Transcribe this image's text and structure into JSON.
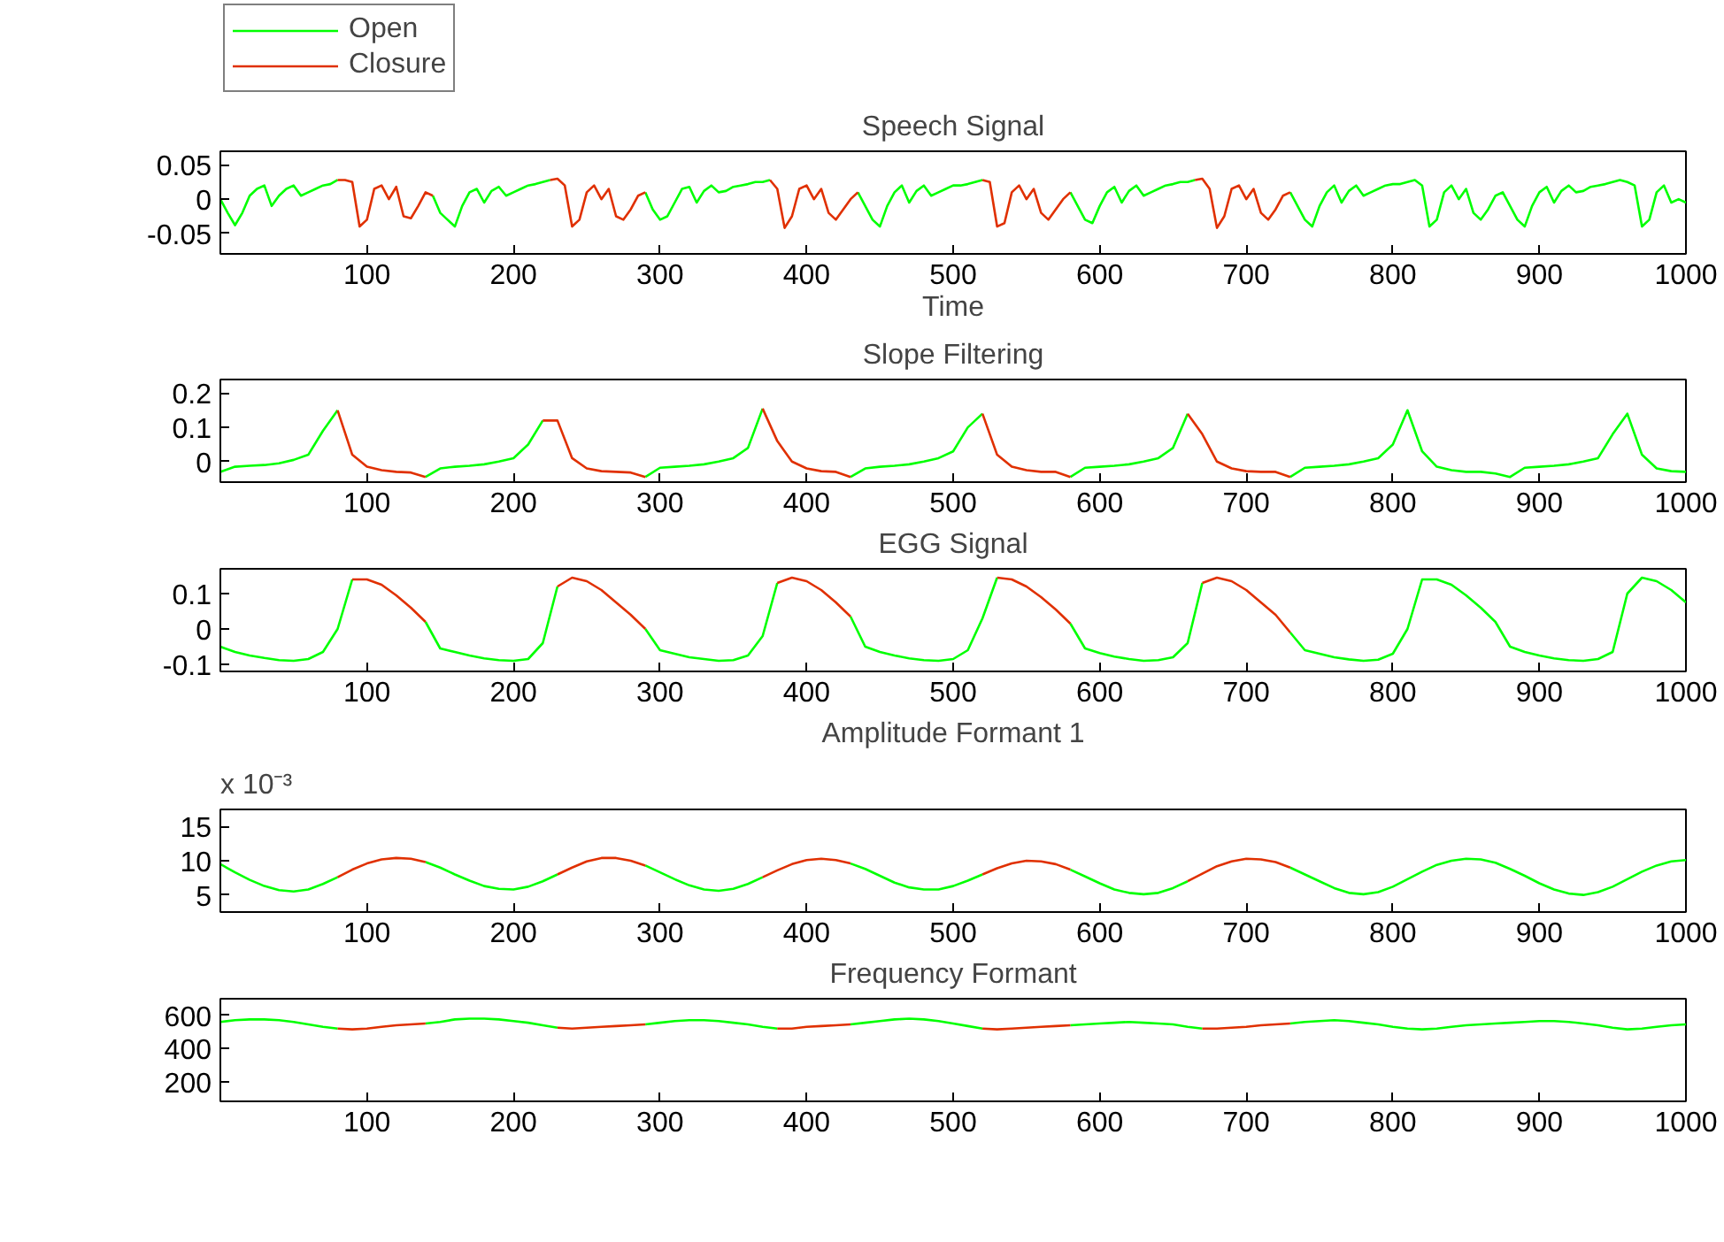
{
  "chart_data": [
    {
      "type": "line",
      "title": "Speech Signal",
      "xlabel": "Time",
      "legend": "top left",
      "grid": false,
      "xlim": [
        0,
        1000
      ],
      "xticks": [
        100,
        200,
        300,
        400,
        500,
        600,
        700,
        800,
        900,
        1000
      ],
      "ylim": [
        -0.08,
        0.07
      ],
      "yticks": [
        -0.05,
        0,
        0.05
      ],
      "x": [
        0,
        5,
        10,
        15,
        20,
        25,
        30,
        35,
        40,
        45,
        50,
        55,
        60,
        65,
        70,
        75,
        80,
        85,
        90,
        95,
        100,
        105,
        110,
        115,
        120,
        125,
        130,
        135,
        140,
        145,
        150,
        155,
        160,
        165,
        170,
        175,
        180,
        185,
        190,
        195,
        200,
        205,
        210,
        215,
        220,
        225,
        230,
        235,
        240,
        245,
        250,
        255,
        260,
        265,
        270,
        275,
        280,
        285,
        290,
        295,
        300,
        305,
        310,
        315,
        320,
        325,
        330,
        335,
        340,
        345,
        350,
        355,
        360,
        365,
        370,
        375,
        380,
        385,
        390,
        395,
        400,
        405,
        410,
        415,
        420,
        425,
        430,
        435,
        440,
        445,
        450,
        455,
        460,
        465,
        470,
        475,
        480,
        485,
        490,
        495,
        500,
        505,
        510,
        515,
        520,
        525,
        530,
        535,
        540,
        545,
        550,
        555,
        560,
        565,
        570,
        575,
        580,
        585,
        590,
        595,
        600,
        605,
        610,
        615,
        620,
        625,
        630,
        635,
        640,
        645,
        650,
        655,
        660,
        665,
        670,
        675,
        680,
        685,
        690,
        695,
        700,
        705,
        710,
        715,
        720,
        725,
        730,
        735,
        740,
        745,
        750,
        755,
        760,
        765,
        770,
        775,
        780,
        785,
        790,
        795,
        800,
        805,
        810,
        815,
        820,
        825,
        830,
        835,
        840,
        845,
        850,
        855,
        860,
        865,
        870,
        875,
        880,
        885,
        890,
        895,
        900,
        905,
        910,
        915,
        920,
        925,
        930,
        935,
        940,
        945,
        950,
        955,
        960,
        965,
        970,
        975,
        980,
        985,
        990,
        995,
        1000
      ],
      "series": [
        {
          "name": "Open",
          "color": "#00ff00",
          "values": [
            0.0,
            -0.02,
            -0.038,
            -0.02,
            0.005,
            0.015,
            0.02,
            -0.01,
            0.005,
            0.015,
            0.02,
            0.005,
            0.01,
            0.015,
            0.02,
            0.022,
            0.028,
            null,
            null,
            null,
            null,
            null,
            null,
            null,
            null,
            null,
            null,
            null,
            null,
            0.005,
            -0.02,
            -0.03,
            -0.04,
            -0.01,
            0.01,
            0.015,
            -0.005,
            0.012,
            0.018,
            0.005,
            0.01,
            0.015,
            0.02,
            0.022,
            0.025,
            0.028,
            null,
            null,
            null,
            null,
            null,
            null,
            null,
            null,
            null,
            null,
            null,
            null,
            0.01,
            -0.015,
            -0.03,
            -0.025,
            -0.005,
            0.015,
            0.018,
            -0.005,
            0.012,
            0.02,
            0.01,
            0.012,
            0.018,
            0.02,
            0.022,
            0.025,
            0.025,
            0.028,
            null,
            null,
            null,
            null,
            null,
            null,
            null,
            null,
            null,
            null,
            null,
            0.01,
            -0.01,
            -0.03,
            -0.04,
            -0.01,
            0.01,
            0.02,
            -0.005,
            0.012,
            0.02,
            0.005,
            0.01,
            0.015,
            0.02,
            0.02,
            0.022,
            0.025,
            0.028,
            null,
            null,
            null,
            null,
            null,
            null,
            null,
            null,
            null,
            null,
            null,
            0.01,
            -0.01,
            -0.03,
            -0.035,
            -0.01,
            0.01,
            0.018,
            -0.005,
            0.012,
            0.02,
            0.005,
            0.01,
            0.015,
            0.02,
            0.022,
            0.025,
            0.025,
            0.028,
            null,
            null,
            null,
            null,
            null,
            null,
            null,
            null,
            null,
            null,
            null,
            null,
            0.01,
            -0.01,
            -0.03,
            -0.04,
            -0.01,
            0.01,
            0.02,
            -0.005,
            0.012,
            0.02,
            0.005,
            0.01,
            0.015,
            0.02,
            0.022,
            0.022,
            0.025,
            0.028,
            0.02,
            -0.04,
            -0.03,
            0.01,
            0.02,
            0.0,
            0.015,
            -0.02,
            -0.03,
            -0.015,
            0.005,
            0.01,
            -0.01,
            -0.03,
            -0.04,
            -0.01,
            0.01,
            0.018,
            -0.005,
            0.012,
            0.02,
            0.01,
            0.012,
            0.018,
            0.02,
            0.022,
            0.025,
            0.028,
            0.025,
            0.02,
            -0.04,
            -0.03,
            0.01,
            0.02,
            -0.005,
            0.0,
            -0.005
          ]
        },
        {
          "name": "Closure",
          "color": "#e03000",
          "x": [
            80,
            85,
            90,
            95,
            100,
            105,
            110,
            115,
            120,
            125,
            130,
            135,
            140,
            145,
            185,
            225,
            230,
            235,
            240,
            245,
            250,
            255,
            260,
            265,
            270,
            275,
            280,
            285,
            290,
            330,
            375,
            380,
            385,
            390,
            395,
            400,
            405,
            410,
            415,
            420,
            425,
            430,
            435,
            480,
            520,
            525,
            530,
            535,
            540,
            545,
            550,
            555,
            560,
            565,
            570,
            575,
            580,
            620,
            665,
            670,
            675,
            680,
            685,
            690,
            695,
            700,
            705,
            710,
            715,
            720,
            725,
            730
          ],
          "values": [
            0.028,
            0.028,
            0.025,
            -0.04,
            -0.03,
            0.015,
            0.02,
            0.0,
            0.018,
            -0.025,
            -0.028,
            -0.01,
            0.01,
            0.005,
            null,
            0.028,
            0.03,
            0.02,
            -0.04,
            -0.03,
            0.01,
            0.02,
            0.0,
            0.015,
            -0.025,
            -0.03,
            -0.015,
            0.005,
            0.01,
            null,
            0.028,
            0.015,
            -0.042,
            -0.025,
            0.015,
            0.02,
            0.0,
            0.015,
            -0.02,
            -0.03,
            -0.015,
            0.0,
            0.01,
            null,
            0.028,
            0.025,
            -0.04,
            -0.035,
            0.01,
            0.02,
            0.0,
            0.015,
            -0.02,
            -0.03,
            -0.015,
            0.0,
            0.01,
            null,
            0.028,
            0.03,
            0.015,
            -0.042,
            -0.025,
            0.015,
            0.02,
            0.0,
            0.015,
            -0.02,
            -0.03,
            -0.015,
            0.005,
            0.01
          ]
        }
      ]
    },
    {
      "type": "line",
      "title": "Slope Filtering",
      "grid": false,
      "xlim": [
        0,
        1000
      ],
      "xticks": [
        100,
        200,
        300,
        400,
        500,
        600,
        700,
        800,
        900,
        1000
      ],
      "ylim": [
        -0.06,
        0.24
      ],
      "yticks": [
        0,
        0.1,
        0.2
      ],
      "x": [
        0,
        10,
        20,
        30,
        40,
        50,
        60,
        70,
        80,
        90,
        100,
        110,
        120,
        130,
        140,
        150,
        160,
        170,
        180,
        190,
        200,
        210,
        220,
        230,
        240,
        250,
        260,
        270,
        280,
        290,
        300,
        310,
        320,
        330,
        340,
        350,
        360,
        370,
        380,
        390,
        400,
        410,
        420,
        430,
        440,
        450,
        460,
        470,
        480,
        490,
        500,
        510,
        520,
        530,
        540,
        550,
        560,
        570,
        580,
        590,
        600,
        610,
        620,
        630,
        640,
        650,
        660,
        670,
        680,
        690,
        700,
        710,
        720,
        730,
        740,
        750,
        760,
        770,
        780,
        790,
        800,
        810,
        820,
        830,
        840,
        850,
        860,
        870,
        880,
        890,
        900,
        910,
        920,
        930,
        940,
        950,
        960,
        970,
        980,
        990,
        1000
      ],
      "series": [
        {
          "color": "#00ff00",
          "values": [
            -0.03,
            -0.015,
            -0.012,
            -0.01,
            -0.005,
            0.005,
            0.02,
            0.09,
            0.15,
            null,
            null,
            null,
            null,
            null,
            -0.045,
            -0.02,
            -0.015,
            -0.012,
            -0.008,
            0.0,
            0.01,
            0.05,
            0.12,
            null,
            null,
            null,
            null,
            null,
            null,
            -0.045,
            -0.018,
            -0.015,
            -0.012,
            -0.008,
            0.0,
            0.01,
            0.04,
            0.155,
            null,
            null,
            null,
            null,
            null,
            -0.045,
            -0.02,
            -0.015,
            -0.012,
            -0.008,
            0.0,
            0.01,
            0.03,
            0.1,
            0.14,
            null,
            null,
            null,
            null,
            null,
            -0.045,
            -0.018,
            -0.015,
            -0.012,
            -0.008,
            0.0,
            0.01,
            0.04,
            0.14,
            null,
            null,
            null,
            null,
            null,
            null,
            -0.045,
            -0.018,
            -0.015,
            -0.012,
            -0.008,
            0.0,
            0.01,
            0.05,
            0.15,
            0.03,
            -0.015,
            -0.025,
            -0.03,
            -0.03,
            -0.035,
            -0.045,
            -0.018,
            -0.015,
            -0.012,
            -0.008,
            0.0,
            0.01,
            0.08,
            0.14,
            0.02,
            -0.02,
            -0.028,
            -0.03
          ]
        },
        {
          "color": "#e03000",
          "x": [
            80,
            90,
            100,
            110,
            120,
            130,
            140,
            180,
            220,
            230,
            240,
            250,
            260,
            270,
            280,
            290,
            330,
            370,
            380,
            390,
            400,
            410,
            420,
            430,
            470,
            520,
            530,
            540,
            550,
            560,
            570,
            580,
            620,
            660,
            670,
            680,
            690,
            700,
            710,
            720,
            730
          ],
          "values": [
            0.15,
            0.02,
            -0.015,
            -0.025,
            -0.03,
            -0.032,
            -0.045,
            null,
            0.12,
            0.12,
            0.01,
            -0.02,
            -0.028,
            -0.03,
            -0.032,
            -0.045,
            null,
            0.155,
            0.06,
            0.0,
            -0.02,
            -0.028,
            -0.03,
            -0.045,
            null,
            0.14,
            0.02,
            -0.015,
            -0.025,
            -0.03,
            -0.03,
            -0.045,
            null,
            0.14,
            0.08,
            0.0,
            -0.02,
            -0.028,
            -0.03,
            -0.03,
            -0.045
          ]
        }
      ]
    },
    {
      "type": "line",
      "title": "EGG Signal",
      "grid": false,
      "xlim": [
        0,
        1000
      ],
      "xticks": [
        100,
        200,
        300,
        400,
        500,
        600,
        700,
        800,
        900,
        1000
      ],
      "ylim": [
        -0.12,
        0.17
      ],
      "yticks": [
        -0.1,
        0,
        0.1
      ],
      "x": [
        0,
        10,
        20,
        30,
        40,
        50,
        60,
        70,
        80,
        90,
        100,
        110,
        120,
        130,
        140,
        150,
        160,
        170,
        180,
        190,
        200,
        210,
        220,
        230,
        240,
        250,
        260,
        270,
        280,
        290,
        300,
        310,
        320,
        330,
        340,
        350,
        360,
        370,
        380,
        390,
        400,
        410,
        420,
        430,
        440,
        450,
        460,
        470,
        480,
        490,
        500,
        510,
        520,
        530,
        540,
        550,
        560,
        570,
        580,
        590,
        600,
        610,
        620,
        630,
        640,
        650,
        660,
        670,
        680,
        690,
        700,
        710,
        720,
        730,
        740,
        750,
        760,
        770,
        780,
        790,
        800,
        810,
        820,
        830,
        840,
        850,
        860,
        870,
        880,
        890,
        900,
        910,
        920,
        930,
        940,
        950,
        960,
        970,
        980,
        990,
        1000
      ],
      "series": [
        {
          "color": "#00ff00",
          "values": [
            -0.05,
            -0.065,
            -0.075,
            -0.082,
            -0.088,
            -0.09,
            -0.085,
            -0.065,
            0.0,
            0.14,
            null,
            null,
            null,
            null,
            0.02,
            -0.055,
            -0.065,
            -0.075,
            -0.083,
            -0.088,
            -0.09,
            -0.085,
            -0.04,
            0.12,
            null,
            null,
            null,
            null,
            null,
            -0.0,
            -0.06,
            -0.07,
            -0.08,
            -0.085,
            -0.09,
            -0.088,
            -0.075,
            -0.02,
            0.13,
            null,
            null,
            null,
            null,
            0.035,
            -0.05,
            -0.065,
            -0.075,
            -0.083,
            -0.088,
            -0.09,
            -0.085,
            -0.06,
            0.03,
            0.145,
            null,
            null,
            null,
            null,
            0.015,
            -0.055,
            -0.068,
            -0.078,
            -0.085,
            -0.09,
            -0.088,
            -0.08,
            -0.04,
            0.13,
            null,
            null,
            null,
            null,
            null,
            -0.01,
            -0.06,
            -0.07,
            -0.08,
            -0.086,
            -0.09,
            -0.087,
            -0.07,
            0.0,
            0.14,
            0.14,
            0.125,
            0.095,
            0.06,
            0.02,
            -0.05,
            -0.065,
            -0.075,
            -0.083,
            -0.088,
            -0.09,
            -0.085,
            -0.065,
            0.1,
            0.145,
            0.135,
            0.11,
            0.075
          ]
        },
        {
          "color": "#e03000",
          "x": [
            90,
            100,
            110,
            120,
            130,
            140,
            185,
            230,
            240,
            250,
            260,
            270,
            280,
            290,
            335,
            380,
            390,
            400,
            410,
            420,
            430,
            480,
            530,
            540,
            550,
            560,
            570,
            580,
            625,
            670,
            680,
            690,
            700,
            710,
            720,
            730
          ],
          "values": [
            0.14,
            0.14,
            0.125,
            0.095,
            0.06,
            0.02,
            null,
            0.12,
            0.145,
            0.135,
            0.11,
            0.075,
            0.04,
            -0.0,
            null,
            0.13,
            0.145,
            0.135,
            0.11,
            0.075,
            0.035,
            null,
            0.145,
            0.14,
            0.12,
            0.09,
            0.055,
            0.015,
            null,
            0.13,
            0.145,
            0.135,
            0.11,
            0.075,
            0.04,
            -0.01
          ]
        }
      ]
    },
    {
      "type": "line",
      "title": "Amplitude Formant 1",
      "annotations": [
        "x 10⁻³"
      ],
      "grid": false,
      "xlim": [
        0,
        1000
      ],
      "xticks": [
        100,
        200,
        300,
        400,
        500,
        600,
        700,
        800,
        900,
        1000
      ],
      "ylim": [
        2.5,
        17.5
      ],
      "yticks": [
        5,
        10,
        15
      ],
      "x": [
        0,
        10,
        20,
        30,
        40,
        50,
        60,
        70,
        80,
        90,
        100,
        110,
        120,
        130,
        140,
        150,
        160,
        170,
        180,
        190,
        200,
        210,
        220,
        230,
        240,
        250,
        260,
        270,
        280,
        290,
        300,
        310,
        320,
        330,
        340,
        350,
        360,
        370,
        380,
        390,
        400,
        410,
        420,
        430,
        440,
        450,
        460,
        470,
        480,
        490,
        500,
        510,
        520,
        530,
        540,
        550,
        560,
        570,
        580,
        590,
        600,
        610,
        620,
        630,
        640,
        650,
        660,
        670,
        680,
        690,
        700,
        710,
        720,
        730,
        740,
        750,
        760,
        770,
        780,
        790,
        800,
        810,
        820,
        830,
        840,
        850,
        860,
        870,
        880,
        890,
        900,
        910,
        920,
        930,
        940,
        950,
        960,
        970,
        980,
        990,
        1000
      ],
      "series": [
        {
          "color": "#00ff00",
          "values": [
            9.5,
            8.3,
            7.2,
            6.3,
            5.7,
            5.5,
            5.8,
            6.6,
            7.6,
            null,
            null,
            null,
            null,
            null,
            9.8,
            9.0,
            8.0,
            7.1,
            6.3,
            5.9,
            5.8,
            6.2,
            7.0,
            8.0,
            null,
            null,
            null,
            null,
            null,
            9.3,
            8.3,
            7.3,
            6.4,
            5.8,
            5.6,
            5.9,
            6.6,
            7.6,
            null,
            null,
            null,
            null,
            null,
            9.6,
            8.8,
            7.8,
            6.8,
            6.1,
            5.8,
            5.8,
            6.3,
            7.1,
            8.0,
            null,
            null,
            null,
            null,
            null,
            8.7,
            7.7,
            6.7,
            5.8,
            5.3,
            5.1,
            5.3,
            6.0,
            7.0,
            null,
            null,
            null,
            null,
            null,
            null,
            9.0,
            8.0,
            7.0,
            6.0,
            5.3,
            5.1,
            5.4,
            6.2,
            7.3,
            8.4,
            9.4,
            10.0,
            10.3,
            10.2,
            9.7,
            8.8,
            7.8,
            6.7,
            5.8,
            5.2,
            5.0,
            5.4,
            6.2,
            7.3,
            8.4,
            9.3,
            9.9,
            10.1
          ]
        },
        {
          "color": "#e03000",
          "x": [
            80,
            90,
            100,
            110,
            120,
            130,
            140,
            185,
            230,
            240,
            250,
            260,
            270,
            280,
            290,
            330,
            370,
            380,
            390,
            400,
            410,
            420,
            430,
            475,
            520,
            530,
            540,
            550,
            560,
            570,
            580,
            620,
            660,
            670,
            680,
            690,
            700,
            710,
            720,
            730
          ],
          "values": [
            7.6,
            8.7,
            9.6,
            10.2,
            10.4,
            10.3,
            9.8,
            null,
            8.0,
            9.0,
            9.9,
            10.4,
            10.4,
            10.0,
            9.3,
            null,
            7.6,
            8.6,
            9.5,
            10.1,
            10.3,
            10.1,
            9.6,
            null,
            8.0,
            8.9,
            9.6,
            10.0,
            9.9,
            9.5,
            8.7,
            null,
            7.0,
            8.1,
            9.2,
            9.9,
            10.3,
            10.2,
            9.8,
            9.0
          ]
        }
      ]
    },
    {
      "type": "line",
      "title": "Frequency Formant",
      "grid": false,
      "xlim": [
        0,
        1000
      ],
      "xticks": [
        100,
        200,
        300,
        400,
        500,
        600,
        700,
        800,
        900,
        1000
      ],
      "ylim": [
        80,
        700
      ],
      "yticks": [
        200,
        400,
        600
      ],
      "x": [
        0,
        10,
        20,
        30,
        40,
        50,
        60,
        70,
        80,
        90,
        100,
        110,
        120,
        130,
        140,
        150,
        160,
        170,
        180,
        190,
        200,
        210,
        220,
        230,
        240,
        250,
        260,
        270,
        280,
        290,
        300,
        310,
        320,
        330,
        340,
        350,
        360,
        370,
        380,
        390,
        400,
        410,
        420,
        430,
        440,
        450,
        460,
        470,
        480,
        490,
        500,
        510,
        520,
        530,
        540,
        550,
        560,
        570,
        580,
        590,
        600,
        610,
        620,
        630,
        640,
        650,
        660,
        670,
        680,
        690,
        700,
        710,
        720,
        730,
        740,
        750,
        760,
        770,
        780,
        790,
        800,
        810,
        820,
        830,
        840,
        850,
        860,
        870,
        880,
        890,
        900,
        910,
        920,
        930,
        940,
        950,
        960,
        970,
        980,
        990,
        1000
      ],
      "series": [
        {
          "color": "#00ff00",
          "values": [
            560,
            570,
            575,
            575,
            570,
            560,
            545,
            530,
            520,
            null,
            null,
            null,
            null,
            null,
            550,
            560,
            575,
            580,
            580,
            575,
            565,
            555,
            540,
            525,
            null,
            null,
            null,
            null,
            null,
            545,
            555,
            565,
            570,
            570,
            565,
            555,
            545,
            530,
            520,
            null,
            null,
            null,
            null,
            545,
            555,
            565,
            575,
            580,
            575,
            565,
            550,
            535,
            520,
            null,
            null,
            null,
            null,
            null,
            540,
            545,
            550,
            555,
            560,
            555,
            550,
            545,
            530,
            520,
            null,
            null,
            null,
            null,
            null,
            550,
            560,
            565,
            570,
            565,
            555,
            545,
            530,
            520,
            515,
            520,
            530,
            540,
            545,
            550,
            555,
            560,
            565,
            565,
            560,
            550,
            540,
            525,
            515,
            520,
            530,
            540,
            545
          ]
        },
        {
          "color": "#e03000",
          "x": [
            80,
            90,
            100,
            110,
            120,
            130,
            140,
            185,
            230,
            240,
            250,
            260,
            270,
            280,
            290,
            335,
            380,
            390,
            400,
            410,
            420,
            430,
            475,
            520,
            530,
            540,
            550,
            560,
            570,
            580,
            625,
            670,
            680,
            690,
            700,
            710,
            720,
            730
          ],
          "values": [
            520,
            515,
            520,
            530,
            540,
            545,
            550,
            null,
            525,
            520,
            525,
            530,
            535,
            540,
            545,
            null,
            520,
            520,
            530,
            535,
            540,
            545,
            null,
            520,
            515,
            520,
            525,
            530,
            535,
            540,
            null,
            520,
            520,
            525,
            530,
            540,
            545,
            550
          ]
        }
      ]
    }
  ]
}
